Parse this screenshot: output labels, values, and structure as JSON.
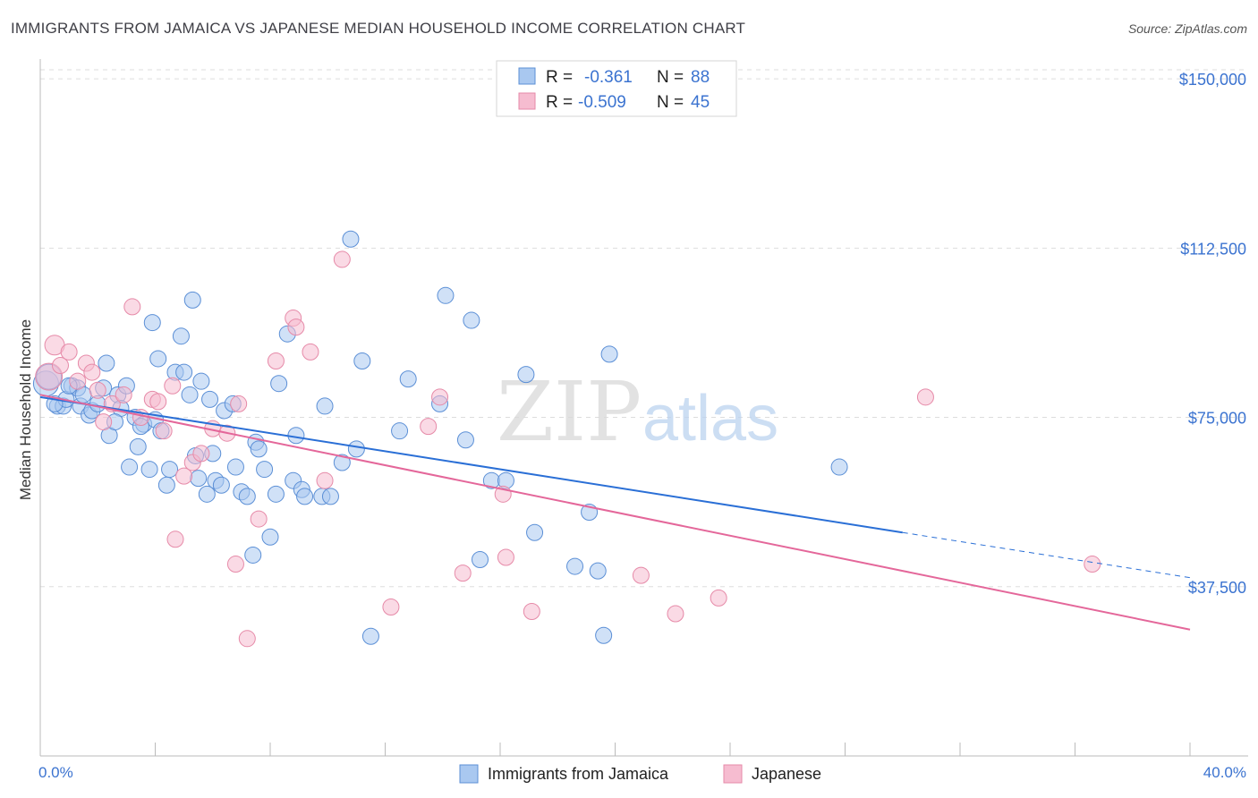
{
  "title": "IMMIGRANTS FROM JAMAICA VS JAPANESE MEDIAN HOUSEHOLD INCOME CORRELATION CHART",
  "source": "Source: ZipAtlas.com",
  "watermark": {
    "zip": "ZIP",
    "atlas": "atlas"
  },
  "colors": {
    "blue_fill": "#a9c8f0",
    "blue_stroke": "#5b8fd6",
    "blue_line": "#2a6fd6",
    "pink_fill": "#f6bcd0",
    "pink_stroke": "#e68aa8",
    "pink_line": "#e4679a",
    "grid": "#dddddd",
    "axis_text": "#3b73d0"
  },
  "legend": {
    "rows": [
      {
        "r_label": "R =",
        "r_value": "-0.361",
        "n_label": "N =",
        "n_value": "88",
        "color": "blue"
      },
      {
        "r_label": "R =",
        "r_value": "-0.509",
        "n_label": "N =",
        "n_value": "45",
        "color": "pink"
      }
    ]
  },
  "bottom_legend": [
    "Immigrants from Jamaica",
    "Japanese"
  ],
  "chart_data": {
    "type": "scatter",
    "ylabel": "Median Household Income",
    "xlim": [
      0,
      40
    ],
    "ylim": [
      0,
      152000
    ],
    "x_tick_labels": [
      "0.0%",
      "40.0%"
    ],
    "y_ticks": [
      37500,
      75000,
      112500,
      150000
    ],
    "y_tick_labels": [
      "$37,500",
      "$75,000",
      "$112,500",
      "$150,000"
    ],
    "grid": true,
    "series": [
      {
        "name": "Immigrants from Jamaica",
        "color": "blue",
        "points": [
          [
            0.2,
            82500,
            14
          ],
          [
            0.3,
            84000,
            14
          ],
          [
            0.6,
            77500,
            9
          ],
          [
            0.8,
            77500,
            9
          ],
          [
            0.9,
            79000,
            9
          ],
          [
            1.1,
            82000,
            9
          ],
          [
            1.3,
            81500,
            9
          ],
          [
            1.4,
            77500,
            9
          ],
          [
            1.7,
            75500,
            9
          ],
          [
            1.8,
            76500,
            9
          ],
          [
            2.2,
            81500,
            9
          ],
          [
            2.3,
            87000,
            9
          ],
          [
            2.4,
            71000,
            9
          ],
          [
            2.7,
            80000,
            9
          ],
          [
            3.0,
            82000,
            9
          ],
          [
            3.1,
            64000,
            9
          ],
          [
            3.3,
            75000,
            9
          ],
          [
            3.4,
            68500,
            9
          ],
          [
            3.6,
            73500,
            9
          ],
          [
            3.8,
            63500,
            9
          ],
          [
            3.9,
            96000,
            9
          ],
          [
            4.0,
            74500,
            9
          ],
          [
            4.1,
            88000,
            9
          ],
          [
            4.4,
            60000,
            9
          ],
          [
            4.5,
            63500,
            9
          ],
          [
            4.7,
            85000,
            9
          ],
          [
            4.9,
            93000,
            9
          ],
          [
            5.0,
            85000,
            9
          ],
          [
            5.2,
            80000,
            9
          ],
          [
            5.3,
            101000,
            9
          ],
          [
            5.4,
            66500,
            9
          ],
          [
            5.5,
            61500,
            9
          ],
          [
            5.6,
            83000,
            9
          ],
          [
            5.8,
            58000,
            9
          ],
          [
            6.0,
            67000,
            9
          ],
          [
            6.1,
            61000,
            9
          ],
          [
            6.3,
            60000,
            9
          ],
          [
            6.4,
            76500,
            9
          ],
          [
            6.7,
            78000,
            9
          ],
          [
            6.8,
            64000,
            9
          ],
          [
            7.0,
            58500,
            9
          ],
          [
            7.2,
            57500,
            9
          ],
          [
            7.4,
            44500,
            9
          ],
          [
            7.5,
            69500,
            9
          ],
          [
            7.6,
            68000,
            9
          ],
          [
            7.8,
            63500,
            9
          ],
          [
            8.0,
            48500,
            9
          ],
          [
            8.2,
            58000,
            9
          ],
          [
            8.3,
            82500,
            9
          ],
          [
            8.6,
            93500,
            9
          ],
          [
            8.8,
            61000,
            9
          ],
          [
            8.9,
            71000,
            9
          ],
          [
            9.1,
            59000,
            9
          ],
          [
            9.2,
            57500,
            9
          ],
          [
            9.8,
            57500,
            9
          ],
          [
            10.1,
            57500,
            9
          ],
          [
            9.9,
            77500,
            9
          ],
          [
            10.5,
            65000,
            9
          ],
          [
            10.8,
            114500,
            9
          ],
          [
            11.0,
            68000,
            9
          ],
          [
            11.2,
            87500,
            9
          ],
          [
            11.5,
            26500,
            9
          ],
          [
            12.5,
            72000,
            9
          ],
          [
            12.8,
            83500,
            9
          ],
          [
            13.9,
            78000,
            9
          ],
          [
            14.1,
            102000,
            9
          ],
          [
            14.8,
            70000,
            9
          ],
          [
            15.3,
            43500,
            9
          ],
          [
            15.7,
            61000,
            9
          ],
          [
            16.2,
            61000,
            9
          ],
          [
            16.9,
            84500,
            9
          ],
          [
            17.2,
            49500,
            9
          ],
          [
            18.6,
            42000,
            9
          ],
          [
            19.1,
            54000,
            9
          ],
          [
            19.4,
            41000,
            9
          ],
          [
            19.8,
            89000,
            9
          ],
          [
            19.6,
            26700,
            9
          ],
          [
            15.0,
            96500,
            9
          ],
          [
            27.8,
            64000,
            9
          ],
          [
            1.0,
            82000,
            9
          ],
          [
            2.0,
            78000,
            9
          ],
          [
            2.8,
            77000,
            9
          ],
          [
            3.5,
            73000,
            9
          ],
          [
            4.2,
            72000,
            9
          ],
          [
            5.9,
            79000,
            9
          ],
          [
            0.5,
            78000,
            9
          ],
          [
            1.5,
            80000,
            9
          ],
          [
            2.6,
            74000,
            9
          ]
        ]
      },
      {
        "name": "Japanese",
        "color": "pink",
        "points": [
          [
            0.3,
            84000,
            15
          ],
          [
            0.5,
            91000,
            11
          ],
          [
            0.7,
            86500,
            9
          ],
          [
            1.0,
            89500,
            9
          ],
          [
            1.3,
            83000,
            9
          ],
          [
            1.6,
            87000,
            9
          ],
          [
            2.0,
            81000,
            9
          ],
          [
            2.2,
            74000,
            9
          ],
          [
            2.5,
            78000,
            9
          ],
          [
            2.9,
            80000,
            9
          ],
          [
            3.2,
            99500,
            9
          ],
          [
            3.5,
            75000,
            9
          ],
          [
            3.9,
            79000,
            9
          ],
          [
            4.1,
            78500,
            9
          ],
          [
            4.3,
            72000,
            9
          ],
          [
            4.7,
            48000,
            9
          ],
          [
            4.6,
            82000,
            9
          ],
          [
            5.0,
            62000,
            9
          ],
          [
            5.3,
            65000,
            9
          ],
          [
            5.6,
            67000,
            9
          ],
          [
            6.0,
            72500,
            9
          ],
          [
            6.5,
            71500,
            9
          ],
          [
            6.9,
            78000,
            9
          ],
          [
            6.8,
            42500,
            9
          ],
          [
            7.2,
            26000,
            9
          ],
          [
            7.6,
            52500,
            9
          ],
          [
            8.2,
            87500,
            9
          ],
          [
            8.8,
            97000,
            9
          ],
          [
            8.9,
            95000,
            9
          ],
          [
            9.4,
            89500,
            9
          ],
          [
            9.9,
            61000,
            9
          ],
          [
            10.5,
            110000,
            9
          ],
          [
            12.2,
            33000,
            9
          ],
          [
            13.5,
            73000,
            9
          ],
          [
            13.9,
            79500,
            9
          ],
          [
            14.7,
            40500,
            9
          ],
          [
            16.1,
            58000,
            9
          ],
          [
            16.2,
            44000,
            9
          ],
          [
            17.1,
            32000,
            9
          ],
          [
            20.9,
            40000,
            9
          ],
          [
            22.1,
            31500,
            9
          ],
          [
            23.6,
            35000,
            9
          ],
          [
            30.8,
            79500,
            9
          ],
          [
            36.6,
            42500,
            9
          ],
          [
            1.8,
            85000,
            9
          ]
        ]
      }
    ],
    "trendlines": [
      {
        "series": "Immigrants from Jamaica",
        "solid": [
          [
            0.0,
            79500
          ],
          [
            30.0,
            49500
          ]
        ],
        "dashed": [
          [
            30.0,
            49500
          ],
          [
            40.0,
            39500
          ]
        ]
      },
      {
        "series": "Japanese",
        "solid": [
          [
            0.0,
            80000
          ],
          [
            40.0,
            28000
          ]
        ]
      }
    ]
  }
}
